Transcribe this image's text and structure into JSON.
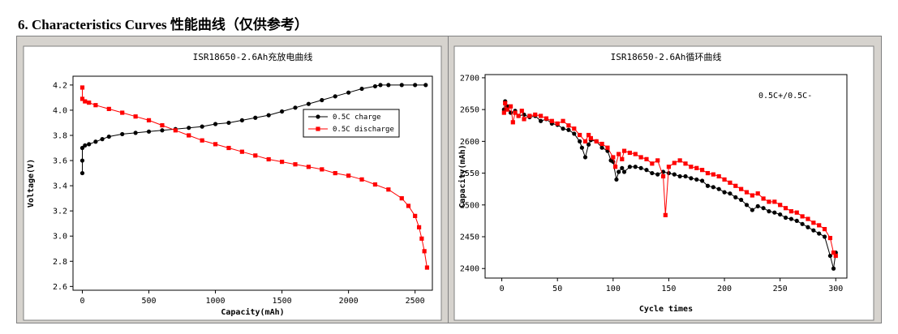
{
  "heading": "6. Characteristics Curves 性能曲线（仅供参考）",
  "colors": {
    "charge": "#000000",
    "discharge": "#ff0000",
    "frame": "#d6d3ce"
  },
  "chart_data": [
    {
      "type": "line",
      "title": "ISR18650-2.6Ah充放电曲线",
      "xlabel": "Capacity(mAh)",
      "ylabel": "Voltage(V)",
      "xlim": [
        -70,
        2630
      ],
      "ylim": [
        2.57,
        4.27
      ],
      "xticks": [
        0,
        500,
        1000,
        1500,
        2000,
        2500
      ],
      "yticks": [
        2.6,
        2.8,
        3.0,
        3.2,
        3.4,
        3.6,
        3.8,
        4.0,
        4.2
      ],
      "ytick_labels": [
        "2.6",
        "2.8",
        "3.0",
        "3.2",
        "3.4",
        "3.6",
        "3.8",
        "4.0",
        "4.2"
      ],
      "legend_position": "top-right",
      "series": [
        {
          "name": "0.5C charge",
          "color": "#000000",
          "marker": "circle",
          "points": [
            [
              0,
              3.5
            ],
            [
              0,
              3.6
            ],
            [
              0,
              3.7
            ],
            [
              20,
              3.72
            ],
            [
              50,
              3.73
            ],
            [
              100,
              3.75
            ],
            [
              150,
              3.77
            ],
            [
              200,
              3.79
            ],
            [
              300,
              3.81
            ],
            [
              400,
              3.82
            ],
            [
              500,
              3.83
            ],
            [
              600,
              3.84
            ],
            [
              700,
              3.85
            ],
            [
              800,
              3.86
            ],
            [
              900,
              3.87
            ],
            [
              1000,
              3.89
            ],
            [
              1100,
              3.9
            ],
            [
              1200,
              3.92
            ],
            [
              1300,
              3.94
            ],
            [
              1400,
              3.96
            ],
            [
              1500,
              3.99
            ],
            [
              1600,
              4.02
            ],
            [
              1700,
              4.05
            ],
            [
              1800,
              4.08
            ],
            [
              1900,
              4.11
            ],
            [
              2000,
              4.14
            ],
            [
              2100,
              4.17
            ],
            [
              2200,
              4.19
            ],
            [
              2240,
              4.2
            ],
            [
              2300,
              4.2
            ],
            [
              2400,
              4.2
            ],
            [
              2500,
              4.2
            ],
            [
              2580,
              4.2
            ]
          ]
        },
        {
          "name": "0.5C discharge",
          "color": "#ff0000",
          "marker": "square",
          "points": [
            [
              0,
              4.18
            ],
            [
              0,
              4.09
            ],
            [
              20,
              4.07
            ],
            [
              50,
              4.06
            ],
            [
              100,
              4.04
            ],
            [
              200,
              4.01
            ],
            [
              300,
              3.98
            ],
            [
              400,
              3.95
            ],
            [
              500,
              3.92
            ],
            [
              600,
              3.88
            ],
            [
              700,
              3.84
            ],
            [
              800,
              3.8
            ],
            [
              900,
              3.76
            ],
            [
              1000,
              3.73
            ],
            [
              1100,
              3.7
            ],
            [
              1200,
              3.67
            ],
            [
              1300,
              3.64
            ],
            [
              1400,
              3.61
            ],
            [
              1500,
              3.59
            ],
            [
              1600,
              3.57
            ],
            [
              1700,
              3.55
            ],
            [
              1800,
              3.53
            ],
            [
              1900,
              3.5
            ],
            [
              2000,
              3.48
            ],
            [
              2100,
              3.45
            ],
            [
              2200,
              3.41
            ],
            [
              2300,
              3.37
            ],
            [
              2400,
              3.3
            ],
            [
              2450,
              3.24
            ],
            [
              2500,
              3.16
            ],
            [
              2530,
              3.07
            ],
            [
              2550,
              2.98
            ],
            [
              2570,
              2.88
            ],
            [
              2590,
              2.75
            ]
          ]
        }
      ]
    },
    {
      "type": "line",
      "title": "ISR18650-2.6Ah循环曲线",
      "xlabel": "Cycle times",
      "ylabel": "Capacity(mAh)",
      "xlim": [
        -15,
        310
      ],
      "ylim": [
        2385,
        2705
      ],
      "xticks": [
        0,
        50,
        100,
        150,
        200,
        250,
        300
      ],
      "yticks": [
        2400,
        2450,
        2500,
        2550,
        2600,
        2650,
        2700
      ],
      "annotation": "0.5C+/0.5C-",
      "series": [
        {
          "name": "",
          "color": "#000000",
          "marker": "circle",
          "points": [
            [
              2,
              2650
            ],
            [
              3,
              2663
            ],
            [
              5,
              2655
            ],
            [
              8,
              2645
            ],
            [
              12,
              2648
            ],
            [
              15,
              2640
            ],
            [
              20,
              2642
            ],
            [
              25,
              2638
            ],
            [
              30,
              2640
            ],
            [
              35,
              2632
            ],
            [
              40,
              2635
            ],
            [
              45,
              2628
            ],
            [
              50,
              2626
            ],
            [
              55,
              2620
            ],
            [
              60,
              2618
            ],
            [
              65,
              2612
            ],
            [
              70,
              2600
            ],
            [
              72,
              2590
            ],
            [
              75,
              2575
            ],
            [
              78,
              2595
            ],
            [
              80,
              2602
            ],
            [
              85,
              2600
            ],
            [
              90,
              2590
            ],
            [
              95,
              2585
            ],
            [
              98,
              2570
            ],
            [
              100,
              2568
            ],
            [
              103,
              2540
            ],
            [
              105,
              2552
            ],
            [
              108,
              2558
            ],
            [
              110,
              2552
            ],
            [
              115,
              2560
            ],
            [
              120,
              2560
            ],
            [
              125,
              2558
            ],
            [
              130,
              2555
            ],
            [
              135,
              2550
            ],
            [
              140,
              2548
            ],
            [
              145,
              2552
            ],
            [
              150,
              2550
            ],
            [
              155,
              2548
            ],
            [
              160,
              2545
            ],
            [
              165,
              2545
            ],
            [
              170,
              2542
            ],
            [
              175,
              2540
            ],
            [
              180,
              2538
            ],
            [
              185,
              2530
            ],
            [
              190,
              2528
            ],
            [
              195,
              2525
            ],
            [
              200,
              2520
            ],
            [
              205,
              2518
            ],
            [
              210,
              2512
            ],
            [
              215,
              2508
            ],
            [
              220,
              2500
            ],
            [
              225,
              2492
            ],
            [
              230,
              2498
            ],
            [
              235,
              2495
            ],
            [
              240,
              2490
            ],
            [
              245,
              2488
            ],
            [
              250,
              2485
            ],
            [
              255,
              2480
            ],
            [
              260,
              2478
            ],
            [
              265,
              2475
            ],
            [
              270,
              2470
            ],
            [
              275,
              2465
            ],
            [
              280,
              2460
            ],
            [
              285,
              2455
            ],
            [
              290,
              2450
            ],
            [
              295,
              2420
            ],
            [
              298,
              2400
            ],
            [
              300,
              2425
            ]
          ]
        },
        {
          "name": "",
          "color": "#ff0000",
          "marker": "square",
          "points": [
            [
              2,
              2645
            ],
            [
              3,
              2660
            ],
            [
              5,
              2650
            ],
            [
              8,
              2655
            ],
            [
              10,
              2630
            ],
            [
              12,
              2645
            ],
            [
              15,
              2640
            ],
            [
              18,
              2648
            ],
            [
              20,
              2635
            ],
            [
              25,
              2640
            ],
            [
              30,
              2642
            ],
            [
              35,
              2640
            ],
            [
              40,
              2636
            ],
            [
              45,
              2632
            ],
            [
              50,
              2628
            ],
            [
              55,
              2632
            ],
            [
              60,
              2625
            ],
            [
              65,
              2620
            ],
            [
              70,
              2610
            ],
            [
              75,
              2600
            ],
            [
              78,
              2610
            ],
            [
              80,
              2605
            ],
            [
              85,
              2600
            ],
            [
              90,
              2596
            ],
            [
              95,
              2590
            ],
            [
              100,
              2575
            ],
            [
              102,
              2560
            ],
            [
              105,
              2580
            ],
            [
              108,
              2572
            ],
            [
              110,
              2585
            ],
            [
              115,
              2582
            ],
            [
              120,
              2580
            ],
            [
              125,
              2575
            ],
            [
              130,
              2572
            ],
            [
              135,
              2565
            ],
            [
              140,
              2570
            ],
            [
              145,
              2545
            ],
            [
              147,
              2484
            ],
            [
              150,
              2560
            ],
            [
              155,
              2566
            ],
            [
              160,
              2570
            ],
            [
              165,
              2565
            ],
            [
              170,
              2560
            ],
            [
              175,
              2558
            ],
            [
              180,
              2555
            ],
            [
              185,
              2550
            ],
            [
              190,
              2548
            ],
            [
              195,
              2545
            ],
            [
              200,
              2540
            ],
            [
              205,
              2535
            ],
            [
              210,
              2530
            ],
            [
              215,
              2525
            ],
            [
              220,
              2520
            ],
            [
              225,
              2515
            ],
            [
              230,
              2518
            ],
            [
              235,
              2510
            ],
            [
              240,
              2505
            ],
            [
              245,
              2505
            ],
            [
              250,
              2500
            ],
            [
              255,
              2495
            ],
            [
              260,
              2490
            ],
            [
              265,
              2488
            ],
            [
              270,
              2482
            ],
            [
              275,
              2478
            ],
            [
              280,
              2472
            ],
            [
              285,
              2468
            ],
            [
              290,
              2462
            ],
            [
              295,
              2448
            ],
            [
              298,
              2425
            ],
            [
              300,
              2420
            ]
          ]
        }
      ]
    }
  ]
}
